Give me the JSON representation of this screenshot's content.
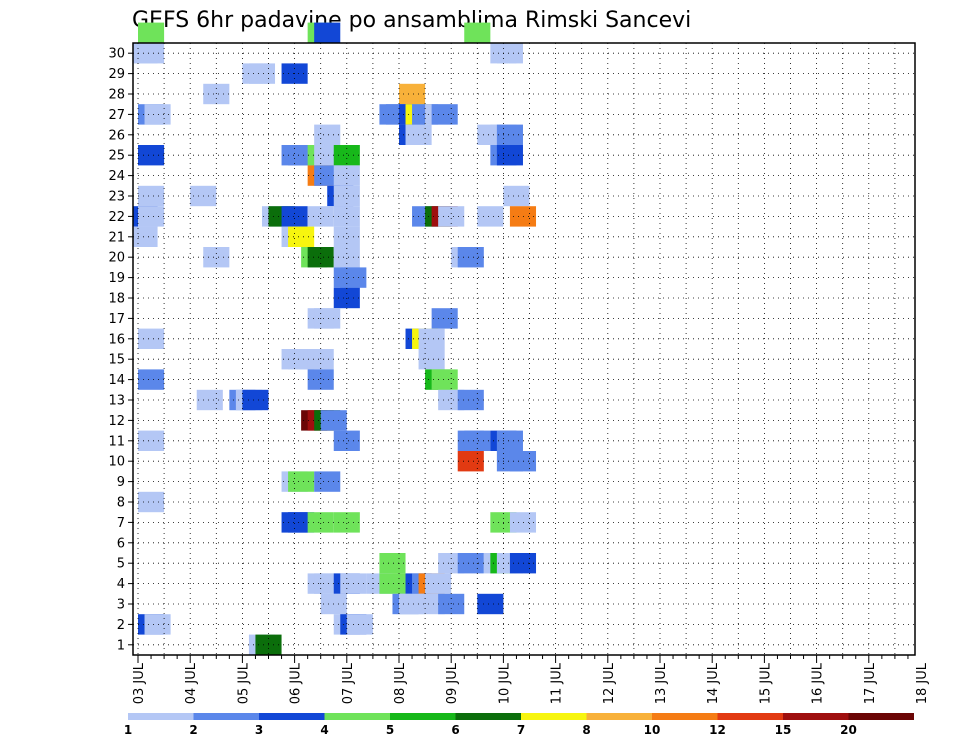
{
  "chart_data": {
    "type": "heatmap",
    "title": "GEFS 6hr padavine po ansamblima Rimski Sancevi",
    "xlabel": "",
    "ylabel": "",
    "x_tick_labels": [
      "03 JUL",
      "04 JUL",
      "05 JUL",
      "06 JUL",
      "07 JUL",
      "08 JUL",
      "09 JUL",
      "10 JUL",
      "11 JUL",
      "12 JUL",
      "13 JUL",
      "14 JUL",
      "15 JUL",
      "16 JUL",
      "17 JUL",
      "18 JUL"
    ],
    "y_tick_labels": [
      "1",
      "2",
      "3",
      "4",
      "5",
      "6",
      "7",
      "8",
      "9",
      "10",
      "11",
      "12",
      "13",
      "14",
      "15",
      "16",
      "17",
      "18",
      "19",
      "20",
      "21",
      "22",
      "23",
      "24",
      "25",
      "26",
      "27",
      "28",
      "29",
      "30"
    ],
    "x_unit": "6-hour step from 03 JUL 00Z (4 steps per day)",
    "xlim": [
      0,
      60
    ],
    "ylim": [
      0,
      30
    ],
    "grid": true,
    "colorbar": {
      "colors": [
        "#b4c7f5",
        "#5b87ea",
        "#1247d6",
        "#6fe35a",
        "#17b81a",
        "#0b6e0b",
        "#f7f50f",
        "#f8b13a",
        "#f57c14",
        "#e23a12",
        "#9f0f0f",
        "#6b0606"
      ],
      "labels": [
        "1",
        "2",
        "3",
        "4",
        "5",
        "6",
        "7",
        "8",
        "10",
        "12",
        "15",
        "20"
      ],
      "placement": "bottom"
    },
    "cells": [
      [
        30,
        1,
        4
      ],
      [
        30,
        14,
        4
      ],
      [
        30,
        14.5,
        3
      ],
      [
        30,
        26,
        4
      ],
      [
        29,
        0.5,
        1
      ],
      [
        29,
        1,
        1
      ],
      [
        29,
        28,
        1
      ],
      [
        29,
        28.5,
        1
      ],
      [
        28,
        9,
        1
      ],
      [
        28,
        9.5,
        1
      ],
      [
        28,
        12,
        3
      ],
      [
        27,
        6,
        1
      ],
      [
        27,
        21,
        8
      ],
      [
        26,
        1,
        2
      ],
      [
        26,
        1.5,
        1
      ],
      [
        26,
        19.5,
        2
      ],
      [
        26,
        20,
        2
      ],
      [
        26,
        21,
        3
      ],
      [
        26,
        21.5,
        7
      ],
      [
        26,
        22,
        2
      ],
      [
        26,
        23,
        1
      ],
      [
        26,
        23.5,
        2
      ],
      [
        25,
        14.5,
        1
      ],
      [
        25,
        21,
        3
      ],
      [
        25,
        21.5,
        1
      ],
      [
        25,
        27,
        1
      ],
      [
        25,
        28,
        1
      ],
      [
        25,
        28.5,
        2
      ],
      [
        24,
        1,
        3
      ],
      [
        24,
        12,
        2
      ],
      [
        24,
        12.5,
        2
      ],
      [
        24,
        14,
        4
      ],
      [
        24,
        14.5,
        1
      ],
      [
        24,
        15,
        1
      ],
      [
        24,
        16,
        5
      ],
      [
        24,
        28,
        2
      ],
      [
        24,
        28.5,
        3
      ],
      [
        23,
        14,
        10
      ],
      [
        23,
        14.5,
        2
      ],
      [
        23,
        16,
        1
      ],
      [
        22,
        1,
        1
      ],
      [
        22,
        5,
        1
      ],
      [
        22,
        15.5,
        3
      ],
      [
        22,
        16,
        1
      ],
      [
        22,
        29,
        1
      ],
      [
        21,
        0.5,
        3
      ],
      [
        21,
        1,
        1
      ],
      [
        21,
        10.5,
        1
      ],
      [
        21,
        11,
        6
      ],
      [
        21,
        12,
        3
      ],
      [
        21,
        14,
        1
      ],
      [
        21,
        16,
        1
      ],
      [
        21,
        22,
        2
      ],
      [
        21,
        23,
        6
      ],
      [
        21,
        23.5,
        15
      ],
      [
        21,
        24,
        1
      ],
      [
        21,
        27,
        1
      ],
      [
        21,
        29.5,
        10
      ],
      [
        20,
        0.5,
        1
      ],
      [
        20,
        12,
        1
      ],
      [
        20,
        12.5,
        7
      ],
      [
        20,
        16,
        1
      ],
      [
        19,
        6,
        1
      ],
      [
        19,
        13.5,
        4
      ],
      [
        19,
        14,
        6
      ],
      [
        19,
        16,
        1
      ],
      [
        19,
        25,
        1
      ],
      [
        19,
        25.5,
        2
      ],
      [
        18,
        16,
        2
      ],
      [
        18,
        16.5,
        2
      ],
      [
        17,
        16,
        3
      ],
      [
        16,
        14,
        1
      ],
      [
        16,
        14.5,
        1
      ],
      [
        16,
        23.5,
        2
      ],
      [
        15,
        1,
        1
      ],
      [
        15,
        21.5,
        3
      ],
      [
        15,
        22,
        7
      ],
      [
        15,
        22.5,
        1
      ],
      [
        14,
        12,
        1
      ],
      [
        14,
        12.5,
        1
      ],
      [
        14,
        14,
        1
      ],
      [
        14,
        22.5,
        1
      ],
      [
        13,
        1,
        2
      ],
      [
        13,
        14,
        2
      ],
      [
        13,
        23,
        5
      ],
      [
        13,
        23.5,
        4
      ],
      [
        12,
        5.5,
        1
      ],
      [
        12,
        8,
        2
      ],
      [
        12,
        8.5,
        1
      ],
      [
        12,
        9,
        3
      ],
      [
        12,
        24,
        1
      ],
      [
        12,
        25.5,
        2
      ],
      [
        11,
        13.5,
        20
      ],
      [
        11,
        14,
        15
      ],
      [
        11,
        14.5,
        6
      ],
      [
        11,
        15,
        2
      ],
      [
        10,
        1,
        1
      ],
      [
        10,
        16,
        2
      ],
      [
        10,
        25.5,
        2
      ],
      [
        10,
        26,
        2
      ],
      [
        10,
        28,
        3
      ],
      [
        10,
        28.5,
        2
      ],
      [
        9,
        25.5,
        12
      ],
      [
        9,
        28.5,
        2
      ],
      [
        9,
        29.5,
        2
      ],
      [
        8,
        12,
        1
      ],
      [
        8,
        12.5,
        4
      ],
      [
        8,
        14.5,
        2
      ],
      [
        7,
        1,
        1
      ],
      [
        6,
        12,
        3
      ],
      [
        6,
        12.5,
        3
      ],
      [
        6,
        14,
        4
      ],
      [
        6,
        16,
        4
      ],
      [
        6,
        28,
        4
      ],
      [
        6,
        29.5,
        1
      ],
      [
        4,
        19.5,
        4
      ],
      [
        4,
        24,
        1
      ],
      [
        4,
        25.5,
        2
      ],
      [
        4,
        27.5,
        1
      ],
      [
        4,
        28,
        5
      ],
      [
        4,
        28.5,
        1
      ],
      [
        4,
        29.5,
        3
      ],
      [
        3,
        14,
        1
      ],
      [
        3,
        14.5,
        1
      ],
      [
        3,
        16,
        3
      ],
      [
        3,
        16.5,
        1
      ],
      [
        3,
        18.5,
        1
      ],
      [
        3,
        19.5,
        4
      ],
      [
        3,
        21.5,
        3
      ],
      [
        3,
        22,
        2
      ],
      [
        3,
        22.5,
        10
      ],
      [
        3,
        23,
        1
      ],
      [
        2,
        15,
        1
      ],
      [
        2,
        20.5,
        2
      ],
      [
        2,
        21,
        1
      ],
      [
        2,
        22.5,
        1
      ],
      [
        2,
        24,
        2
      ],
      [
        2,
        27,
        3
      ],
      [
        1,
        1,
        3
      ],
      [
        1,
        1.5,
        1
      ],
      [
        1,
        16,
        1
      ],
      [
        1,
        16.5,
        3
      ],
      [
        1,
        17,
        1
      ],
      [
        0,
        9.5,
        1
      ],
      [
        0,
        10,
        6
      ]
    ]
  }
}
